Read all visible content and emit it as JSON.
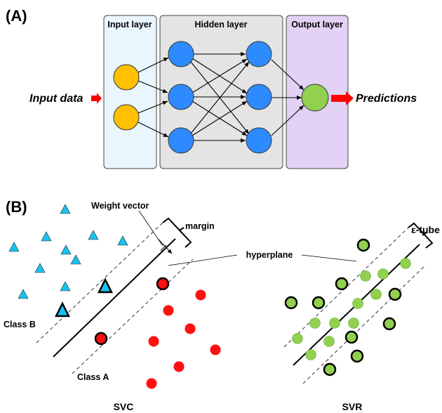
{
  "panel_a": {
    "label": "(A)",
    "layers": {
      "input": "Input layer",
      "hidden": "Hidden layer",
      "output": "Output layer"
    },
    "input_text": "Input data",
    "output_text": "Predictions"
  },
  "panel_b": {
    "label": "(B)",
    "svc": {
      "weight_vector": "Weight vector",
      "margin": "margin",
      "hyperplane": "hyperplane",
      "class_b": "Class B",
      "class_a": "Class A",
      "caption": "SVC"
    },
    "svr": {
      "epsilon_tube": "ε-tube",
      "caption": "SVR"
    }
  },
  "colors": {
    "input_node": "#FFC000",
    "hidden_node": "#2E8BFF",
    "output_node": "#92D050",
    "input_layer_bg": "#E9F6FD",
    "hidden_layer_bg": "#E4E4E4",
    "output_layer_bg": "#E3D2F5",
    "class_b": "#19C2EE",
    "class_a": "#FF1010",
    "svr_point": "#92D050",
    "arrow": "#FF0000"
  }
}
